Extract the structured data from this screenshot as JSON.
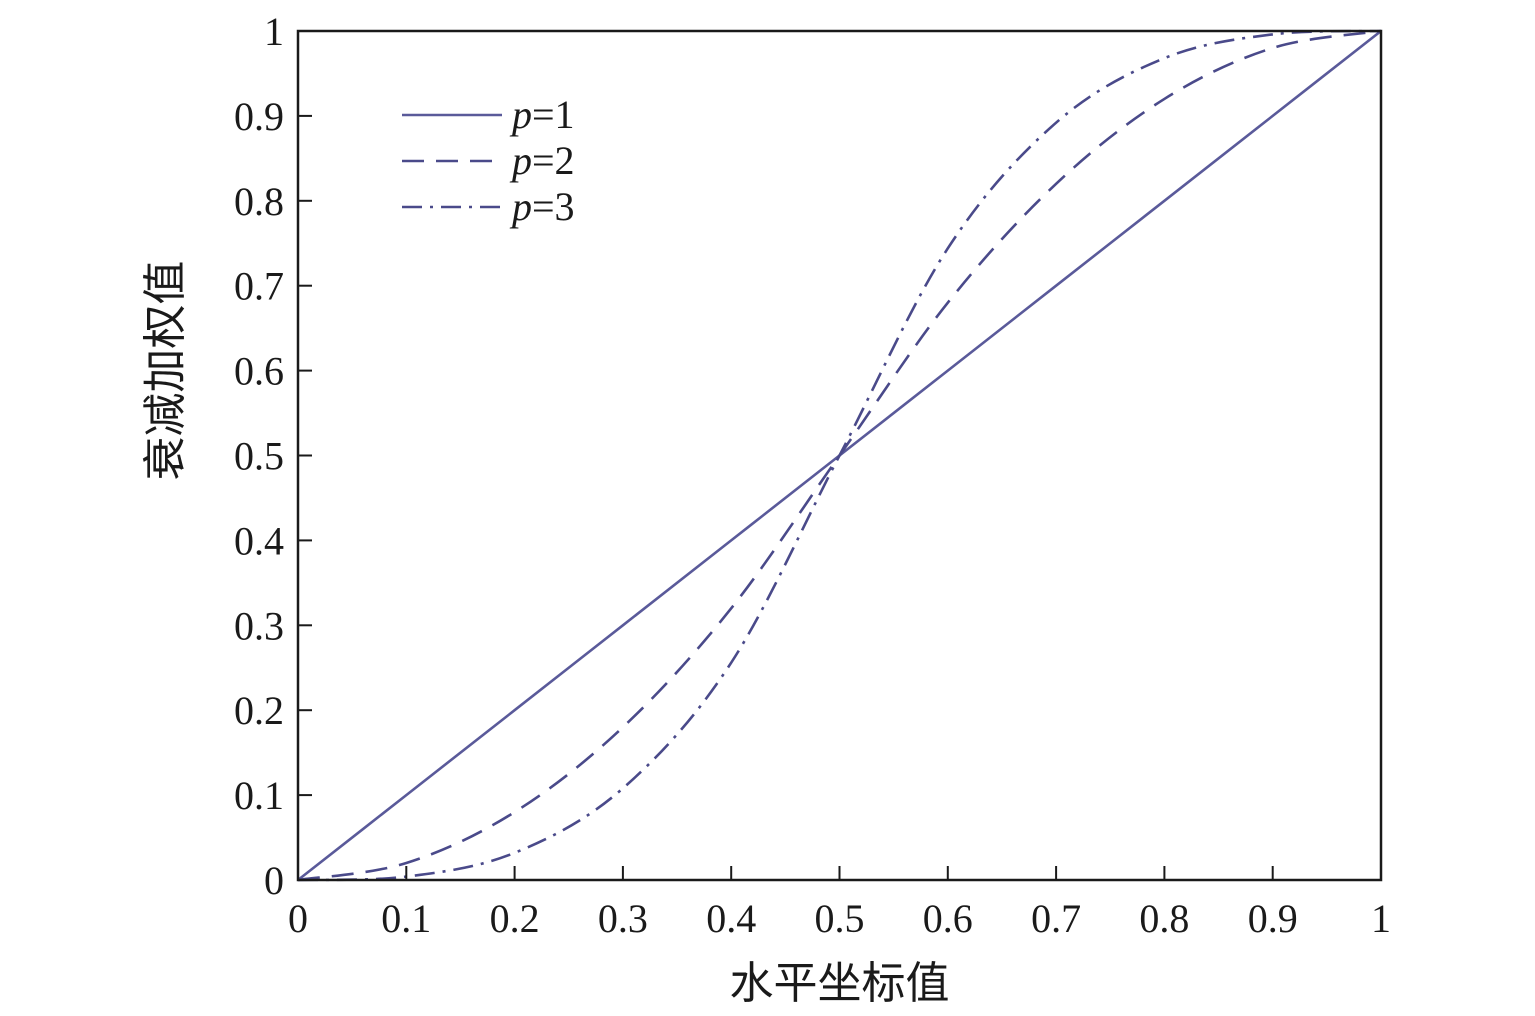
{
  "chart_data": {
    "type": "line",
    "title": "",
    "xlabel": "水平坐标值",
    "ylabel": "衰减加权值",
    "xlim": [
      0,
      1
    ],
    "ylim": [
      0,
      1
    ],
    "x_ticks": [
      "0",
      "0.1",
      "0.2",
      "0.3",
      "0.4",
      "0.5",
      "0.6",
      "0.7",
      "0.8",
      "0.9",
      "1"
    ],
    "y_ticks": [
      "0",
      "0.1",
      "0.2",
      "0.3",
      "0.4",
      "0.5",
      "0.6",
      "0.7",
      "0.8",
      "0.9",
      "1"
    ],
    "grid": false,
    "legend_position": "top-left",
    "x": [
      0,
      0.1,
      0.2,
      0.3,
      0.4,
      0.5,
      0.6,
      0.7,
      0.8,
      0.9,
      1
    ],
    "series": [
      {
        "name": "p=1",
        "legend_italic": "p",
        "legend_rest": "=1",
        "style": "solid",
        "color": "#5a5a9a",
        "values": [
          0,
          0.1,
          0.2,
          0.3,
          0.4,
          0.5,
          0.6,
          0.7,
          0.8,
          0.9,
          1
        ]
      },
      {
        "name": "p=2",
        "legend_italic": "p",
        "legend_rest": "=2",
        "style": "dashed",
        "color": "#4a4a8a",
        "values": [
          0,
          0.02,
          0.08,
          0.18,
          0.32,
          0.5,
          0.68,
          0.82,
          0.92,
          0.98,
          1
        ]
      },
      {
        "name": "p=3",
        "legend_italic": "p",
        "legend_rest": "=3",
        "style": "dashdot",
        "color": "#4a4a8a",
        "values": [
          0,
          0.004,
          0.032,
          0.108,
          0.256,
          0.5,
          0.744,
          0.892,
          0.968,
          0.996,
          1
        ]
      }
    ]
  }
}
